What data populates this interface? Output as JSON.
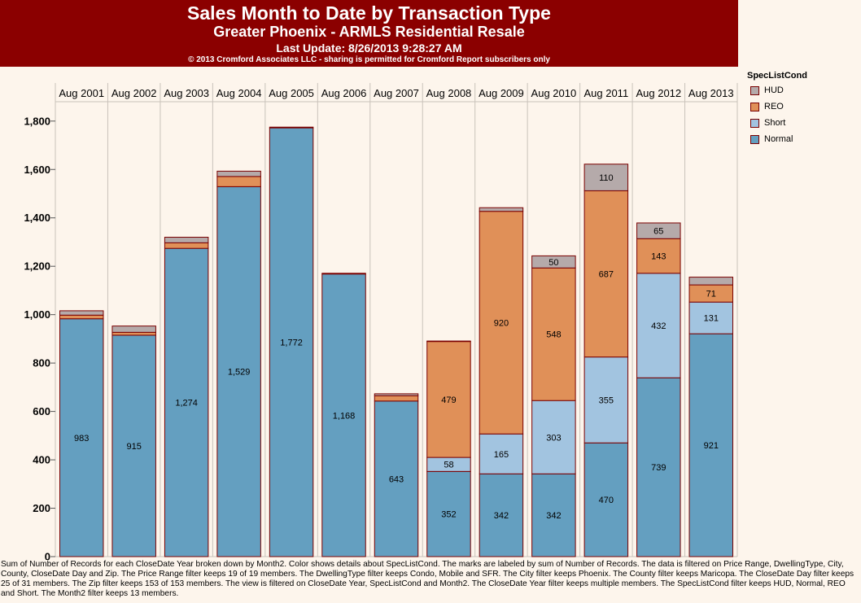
{
  "header": {
    "title": "Sales Month to Date by Transaction Type",
    "subtitle": "Greater Phoenix - ARMLS Residential Resale",
    "last_update": "Last Update: 8/26/2013 9:28:27 AM",
    "copyright": "© 2013 Cromford Associates LLC - sharing is permitted for Cromford Report subscribers only"
  },
  "legend": {
    "title": "SpecListCond",
    "items": [
      {
        "label": "HUD",
        "color": "#b5aaaa"
      },
      {
        "label": "REO",
        "color": "#e09058"
      },
      {
        "label": "Short",
        "color": "#a2c4e0"
      },
      {
        "label": "Normal",
        "color": "#649fc0"
      }
    ]
  },
  "chart_data": {
    "type": "bar",
    "stacked": true,
    "categories": [
      "Aug 2001",
      "Aug 2002",
      "Aug 2003",
      "Aug 2004",
      "Aug 2005",
      "Aug 2006",
      "Aug 2007",
      "Aug 2008",
      "Aug 2009",
      "Aug 2010",
      "Aug 2011",
      "Aug 2012",
      "Aug 2013"
    ],
    "ylim": [
      0,
      1880
    ],
    "yticks": [
      0,
      200,
      400,
      600,
      800,
      1000,
      1200,
      1400,
      1600,
      1800
    ],
    "ytick_labels": [
      "0",
      "200",
      "400",
      "600",
      "800",
      "1,000",
      "1,200",
      "1,400",
      "1,600",
      "1,800"
    ],
    "series": [
      {
        "name": "Normal",
        "color": "#649fc0",
        "values": [
          983,
          915,
          1274,
          1529,
          1772,
          1168,
          643,
          352,
          342,
          342,
          470,
          739,
          921
        ],
        "labels": [
          "983",
          "915",
          "1,274",
          "1,529",
          "1,772",
          "1,168",
          "643",
          "352",
          "342",
          "342",
          "470",
          "739",
          "921"
        ]
      },
      {
        "name": "Short",
        "color": "#a2c4e0",
        "values": [
          0,
          0,
          0,
          0,
          0,
          0,
          0,
          58,
          165,
          303,
          355,
          432,
          131
        ],
        "labels": [
          "",
          "",
          "",
          "",
          "",
          "",
          "",
          "58",
          "165",
          "303",
          "355",
          "432",
          "131"
        ]
      },
      {
        "name": "REO",
        "color": "#e09058",
        "values": [
          15,
          12,
          23,
          42,
          0,
          0,
          22,
          479,
          920,
          548,
          687,
          143,
          71
        ],
        "labels": [
          "",
          "",
          "",
          "",
          "",
          "",
          "",
          "479",
          "920",
          "548",
          "687",
          "143",
          "71"
        ]
      },
      {
        "name": "HUD",
        "color": "#b5aaaa",
        "values": [
          18,
          26,
          23,
          22,
          3,
          3,
          8,
          2,
          15,
          50,
          110,
          65,
          32
        ],
        "labels": [
          "",
          "",
          "",
          "",
          "",
          "",
          "",
          "",
          "",
          "50",
          "110",
          "65",
          ""
        ]
      }
    ]
  },
  "footnote": "Sum of Number of Records for each CloseDate Year broken down by Month2.  Color shows details about SpecListCond.  The marks are labeled by sum of Number of Records. The data is filtered on Price Range, DwellingType, City, County, CloseDate Day and Zip. The Price Range filter keeps 19 of 19 members. The DwellingType filter keeps Condo, Mobile and SFR. The City filter keeps Phoenix. The County filter keeps Maricopa. The CloseDate Day filter keeps 25 of 31 members. The Zip filter keeps 153 of 153 members. The view is filtered on CloseDate Year, SpecListCond and Month2. The CloseDate Year filter keeps multiple members. The SpecListCond filter keeps HUD, Normal, REO and Short. The Month2 filter keeps 13 members."
}
